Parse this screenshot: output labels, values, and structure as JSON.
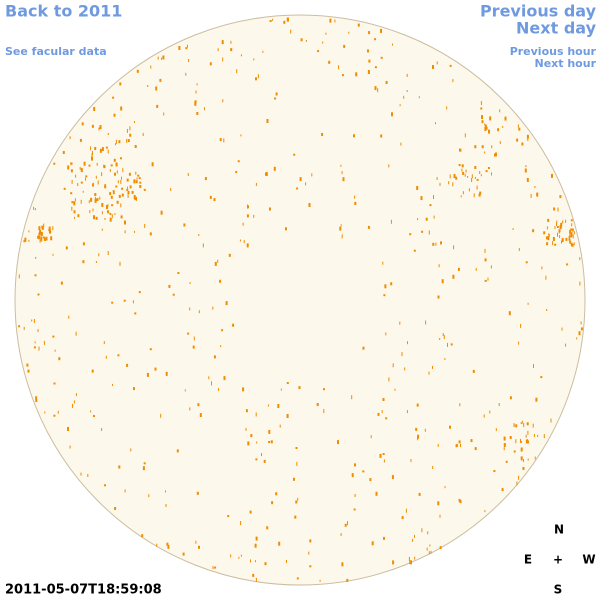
{
  "header": {
    "back_link": "Back to 2011",
    "facular_link": "See facular data",
    "previous_day": "Previous day",
    "next_day": "Next day",
    "previous_hour": "Previous hour",
    "next_hour": "Next hour"
  },
  "compass": {
    "north": "N",
    "east": "E",
    "center": "+",
    "west": "W",
    "south": "S"
  },
  "timestamp": "2011-05-07T18:59:08"
}
